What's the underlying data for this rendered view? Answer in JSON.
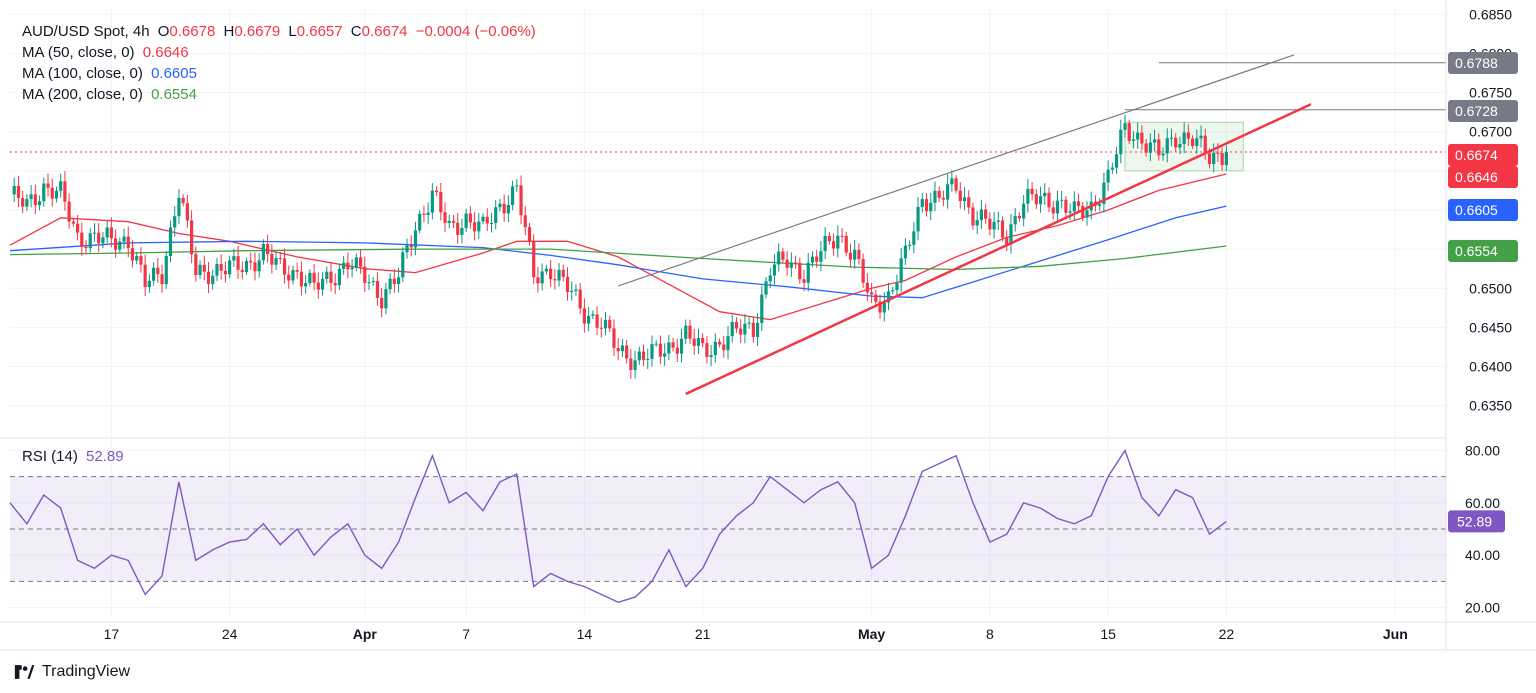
{
  "legend": {
    "symbol": "AUD/USD Spot, 4h",
    "o_label": "O",
    "o": "0.6678",
    "h_label": "H",
    "h": "0.6679",
    "l_label": "L",
    "l": "0.6657",
    "c_label": "C",
    "c": "0.6674",
    "change": "−0.0004 (−0.06%)",
    "ma50_label": "MA (50, close, 0)",
    "ma50_value": "0.6646",
    "ma100_label": "MA (100, close, 0)",
    "ma100_value": "0.6605",
    "ma200_label": "MA (200, close, 0)",
    "ma200_value": "0.6554",
    "rsi_label": "RSI (14)",
    "rsi_value": "52.89"
  },
  "brand": {
    "name": "TradingView"
  },
  "colors": {
    "up": "#089981",
    "down": "#f23645",
    "ma50": "#f23645",
    "ma100": "#2962ff",
    "ma200": "#43a047",
    "rsi": "#7e57c2",
    "trend": "#f23645",
    "channel": "#787b86"
  },
  "chart_data": {
    "type": "line",
    "title": "AUD/USD Spot, 4h",
    "price_axis": {
      "ylim": [
        0.631,
        0.6858
      ],
      "ticks": [
        "0.6850",
        "0.6800",
        "0.6750",
        "0.6700",
        "0.6650",
        "0.6600",
        "0.6550",
        "0.6500",
        "0.6450",
        "0.6400",
        "0.6350"
      ]
    },
    "time_axis": {
      "x_range": [
        "2024-03-11",
        "2024-06-04"
      ],
      "ticks": [
        {
          "date": "2024-03-17",
          "label": "17"
        },
        {
          "date": "2024-03-24",
          "label": "24"
        },
        {
          "date": "2024-04-01",
          "label": "Apr"
        },
        {
          "date": "2024-04-07",
          "label": "7"
        },
        {
          "date": "2024-04-14",
          "label": "14"
        },
        {
          "date": "2024-04-21",
          "label": "21"
        },
        {
          "date": "2024-05-01",
          "label": "May"
        },
        {
          "date": "2024-05-08",
          "label": "8"
        },
        {
          "date": "2024-05-15",
          "label": "15"
        },
        {
          "date": "2024-05-22",
          "label": "22"
        },
        {
          "date": "2024-06-01",
          "label": "Jun"
        }
      ]
    },
    "price_path": [
      [
        "2024-03-11",
        0.662
      ],
      [
        "2024-03-12",
        0.6605
      ],
      [
        "2024-03-13",
        0.663
      ],
      [
        "2024-03-14",
        0.662
      ],
      [
        "2024-03-15",
        0.6565
      ],
      [
        "2024-03-16",
        0.6565
      ],
      [
        "2024-03-17",
        0.656
      ],
      [
        "2024-03-18",
        0.6562
      ],
      [
        "2024-03-19",
        0.6505
      ],
      [
        "2024-03-20",
        0.652
      ],
      [
        "2024-03-21",
        0.6625
      ],
      [
        "2024-03-22",
        0.652
      ],
      [
        "2024-03-24",
        0.6525
      ],
      [
        "2024-03-25",
        0.653
      ],
      [
        "2024-03-26",
        0.6545
      ],
      [
        "2024-03-27",
        0.6525
      ],
      [
        "2024-03-28",
        0.652
      ],
      [
        "2024-03-29",
        0.65
      ],
      [
        "2024-03-30",
        0.6515
      ],
      [
        "2024-03-31",
        0.6532
      ],
      [
        "2024-04-01",
        0.6515
      ],
      [
        "2024-04-02",
        0.649
      ],
      [
        "2024-04-03",
        0.6515
      ],
      [
        "2024-04-04",
        0.658
      ],
      [
        "2024-04-05",
        0.662
      ],
      [
        "2024-04-06",
        0.6575
      ],
      [
        "2024-04-07",
        0.659
      ],
      [
        "2024-04-08",
        0.6575
      ],
      [
        "2024-04-09",
        0.6605
      ],
      [
        "2024-04-10",
        0.6628
      ],
      [
        "2024-04-11",
        0.6515
      ],
      [
        "2024-04-12",
        0.6525
      ],
      [
        "2024-04-13",
        0.65
      ],
      [
        "2024-04-14",
        0.647
      ],
      [
        "2024-04-15",
        0.6455
      ],
      [
        "2024-04-16",
        0.642
      ],
      [
        "2024-04-17",
        0.641
      ],
      [
        "2024-04-18",
        0.6415
      ],
      [
        "2024-04-19",
        0.6425
      ],
      [
        "2024-04-20",
        0.644
      ],
      [
        "2024-04-21",
        0.642
      ],
      [
        "2024-04-22",
        0.643
      ],
      [
        "2024-04-23",
        0.6445
      ],
      [
        "2024-04-24",
        0.645
      ],
      [
        "2024-04-25",
        0.6525
      ],
      [
        "2024-04-26",
        0.6535
      ],
      [
        "2024-04-27",
        0.652
      ],
      [
        "2024-04-28",
        0.6545
      ],
      [
        "2024-04-29",
        0.657
      ],
      [
        "2024-04-30",
        0.654
      ],
      [
        "2024-05-01",
        0.648
      ],
      [
        "2024-05-02",
        0.649
      ],
      [
        "2024-05-03",
        0.654
      ],
      [
        "2024-05-04",
        0.6615
      ],
      [
        "2024-05-05",
        0.6615
      ],
      [
        "2024-05-06",
        0.663
      ],
      [
        "2024-05-07",
        0.6595
      ],
      [
        "2024-05-08",
        0.658
      ],
      [
        "2024-05-09",
        0.657
      ],
      [
        "2024-05-10",
        0.661
      ],
      [
        "2024-05-11",
        0.6615
      ],
      [
        "2024-05-12",
        0.661
      ],
      [
        "2024-05-13",
        0.6595
      ],
      [
        "2024-05-14",
        0.6605
      ],
      [
        "2024-05-15",
        0.664
      ],
      [
        "2024-05-16",
        0.6705
      ],
      [
        "2024-05-17",
        0.669
      ],
      [
        "2024-05-18",
        0.667
      ],
      [
        "2024-05-19",
        0.6695
      ],
      [
        "2024-05-20",
        0.669
      ],
      [
        "2024-05-21",
        0.6667
      ],
      [
        "2024-05-22",
        0.6674
      ]
    ],
    "series": [
      {
        "name": "MA (50, close, 0)",
        "color": "#f23645",
        "points": [
          [
            "2024-03-11",
            0.6555
          ],
          [
            "2024-03-14",
            0.659
          ],
          [
            "2024-03-18",
            0.6585
          ],
          [
            "2024-03-21",
            0.657
          ],
          [
            "2024-03-24",
            0.656
          ],
          [
            "2024-03-28",
            0.654
          ],
          [
            "2024-04-01",
            0.6525
          ],
          [
            "2024-04-04",
            0.652
          ],
          [
            "2024-04-08",
            0.6545
          ],
          [
            "2024-04-10",
            0.656
          ],
          [
            "2024-04-13",
            0.656
          ],
          [
            "2024-04-16",
            0.654
          ],
          [
            "2024-04-19",
            0.6505
          ],
          [
            "2024-04-22",
            0.647
          ],
          [
            "2024-04-25",
            0.646
          ],
          [
            "2024-04-28",
            0.648
          ],
          [
            "2024-05-01",
            0.65
          ],
          [
            "2024-05-03",
            0.651
          ],
          [
            "2024-05-06",
            0.654
          ],
          [
            "2024-05-09",
            0.6565
          ],
          [
            "2024-05-12",
            0.658
          ],
          [
            "2024-05-15",
            0.66
          ],
          [
            "2024-05-18",
            0.6625
          ],
          [
            "2024-05-22",
            0.6646
          ]
        ]
      },
      {
        "name": "MA (100, close, 0)",
        "color": "#2962ff",
        "points": [
          [
            "2024-03-11",
            0.6548
          ],
          [
            "2024-03-18",
            0.6558
          ],
          [
            "2024-03-25",
            0.656
          ],
          [
            "2024-04-01",
            0.6558
          ],
          [
            "2024-04-08",
            0.6552
          ],
          [
            "2024-04-12",
            0.6542
          ],
          [
            "2024-04-16",
            0.653
          ],
          [
            "2024-04-21",
            0.6512
          ],
          [
            "2024-04-26",
            0.6502
          ],
          [
            "2024-05-01",
            0.649
          ],
          [
            "2024-05-04",
            0.6488
          ],
          [
            "2024-05-07",
            0.6508
          ],
          [
            "2024-05-11",
            0.6535
          ],
          [
            "2024-05-15",
            0.6562
          ],
          [
            "2024-05-19",
            0.659
          ],
          [
            "2024-05-22",
            0.6605
          ]
        ]
      },
      {
        "name": "MA (200, close, 0)",
        "color": "#43a047",
        "points": [
          [
            "2024-03-11",
            0.6543
          ],
          [
            "2024-03-18",
            0.6545
          ],
          [
            "2024-03-25",
            0.6548
          ],
          [
            "2024-04-04",
            0.655
          ],
          [
            "2024-04-12",
            0.655
          ],
          [
            "2024-04-21",
            0.6538
          ],
          [
            "2024-04-30",
            0.6527
          ],
          [
            "2024-05-06",
            0.6524
          ],
          [
            "2024-05-11",
            0.6528
          ],
          [
            "2024-05-16",
            0.6538
          ],
          [
            "2024-05-22",
            0.6554
          ]
        ]
      }
    ],
    "trendlines": [
      {
        "color": "#f23645",
        "points": [
          [
            "2024-04-20",
            0.6365
          ],
          [
            "2024-05-27",
            0.6735
          ]
        ]
      },
      {
        "color": "#787b86",
        "points": [
          [
            "2024-04-16",
            0.6503
          ],
          [
            "2024-05-26",
            0.6798
          ]
        ]
      }
    ],
    "levels": [
      {
        "value": 0.6788,
        "label": "0.6788",
        "from": "2024-05-18",
        "color": "#787b86"
      },
      {
        "value": 0.6728,
        "label": "0.6728",
        "from": "2024-05-16",
        "color": "#787b86"
      },
      {
        "value": 0.6674,
        "label": "0.6674",
        "from": "2024-03-11",
        "color": "#f23645",
        "dotted": true
      }
    ],
    "range_box": {
      "x": [
        "2024-05-16",
        "2024-05-23"
      ],
      "y": [
        0.665,
        0.6712
      ]
    },
    "price_labels": [
      {
        "label": "0.6788",
        "value": 0.6788,
        "color": "#787b86"
      },
      {
        "label": "0.6728",
        "value": 0.6728,
        "color": "#787b86"
      },
      {
        "label": "0.6674",
        "value": 0.6674,
        "color": "#f23645"
      },
      {
        "label": "0.6646",
        "value": 0.6646,
        "color": "#f23645"
      },
      {
        "label": "0.6605",
        "value": 0.6605,
        "color": "#2962ff"
      },
      {
        "label": "0.6554",
        "value": 0.6554,
        "color": "#43a047"
      }
    ],
    "rsi": {
      "name": "RSI (14)",
      "ylim": [
        16,
        84
      ],
      "ticks": [
        "80.00",
        "60.00",
        "40.00",
        "20.00"
      ],
      "band": [
        30,
        70
      ],
      "middle": 50,
      "current_label": "52.89",
      "current": 52.89,
      "points": [
        [
          "2024-03-11",
          60
        ],
        [
          "2024-03-12",
          52
        ],
        [
          "2024-03-13",
          63
        ],
        [
          "2024-03-14",
          58
        ],
        [
          "2024-03-15",
          38
        ],
        [
          "2024-03-16",
          35
        ],
        [
          "2024-03-17",
          40
        ],
        [
          "2024-03-18",
          38
        ],
        [
          "2024-03-19",
          25
        ],
        [
          "2024-03-20",
          32
        ],
        [
          "2024-03-21",
          68
        ],
        [
          "2024-03-22",
          38
        ],
        [
          "2024-03-23",
          42
        ],
        [
          "2024-03-24",
          45
        ],
        [
          "2024-03-25",
          46
        ],
        [
          "2024-03-26",
          52
        ],
        [
          "2024-03-27",
          44
        ],
        [
          "2024-03-28",
          50
        ],
        [
          "2024-03-29",
          40
        ],
        [
          "2024-03-30",
          47
        ],
        [
          "2024-03-31",
          52
        ],
        [
          "2024-04-01",
          40
        ],
        [
          "2024-04-02",
          35
        ],
        [
          "2024-04-03",
          45
        ],
        [
          "2024-04-04",
          62
        ],
        [
          "2024-04-05",
          78
        ],
        [
          "2024-04-06",
          60
        ],
        [
          "2024-04-07",
          64
        ],
        [
          "2024-04-08",
          57
        ],
        [
          "2024-04-09",
          68
        ],
        [
          "2024-04-10",
          71
        ],
        [
          "2024-04-11",
          28
        ],
        [
          "2024-04-12",
          33
        ],
        [
          "2024-04-13",
          30
        ],
        [
          "2024-04-14",
          28
        ],
        [
          "2024-04-15",
          25
        ],
        [
          "2024-04-16",
          22
        ],
        [
          "2024-04-17",
          24
        ],
        [
          "2024-04-18",
          30
        ],
        [
          "2024-04-19",
          42
        ],
        [
          "2024-04-20",
          28
        ],
        [
          "2024-04-21",
          35
        ],
        [
          "2024-04-22",
          48
        ],
        [
          "2024-04-23",
          55
        ],
        [
          "2024-04-24",
          60
        ],
        [
          "2024-04-25",
          70
        ],
        [
          "2024-04-26",
          65
        ],
        [
          "2024-04-27",
          60
        ],
        [
          "2024-04-28",
          65
        ],
        [
          "2024-04-29",
          68
        ],
        [
          "2024-04-30",
          60
        ],
        [
          "2024-05-01",
          35
        ],
        [
          "2024-05-02",
          40
        ],
        [
          "2024-05-03",
          55
        ],
        [
          "2024-05-04",
          72
        ],
        [
          "2024-05-05",
          75
        ],
        [
          "2024-05-06",
          78
        ],
        [
          "2024-05-07",
          60
        ],
        [
          "2024-05-08",
          45
        ],
        [
          "2024-05-09",
          48
        ],
        [
          "2024-05-10",
          60
        ],
        [
          "2024-05-11",
          58
        ],
        [
          "2024-05-12",
          54
        ],
        [
          "2024-05-13",
          52
        ],
        [
          "2024-05-14",
          55
        ],
        [
          "2024-05-15",
          70
        ],
        [
          "2024-05-16",
          80
        ],
        [
          "2024-05-17",
          62
        ],
        [
          "2024-05-18",
          55
        ],
        [
          "2024-05-19",
          65
        ],
        [
          "2024-05-20",
          62
        ],
        [
          "2024-05-21",
          48
        ],
        [
          "2024-05-22",
          52.89
        ]
      ]
    }
  }
}
